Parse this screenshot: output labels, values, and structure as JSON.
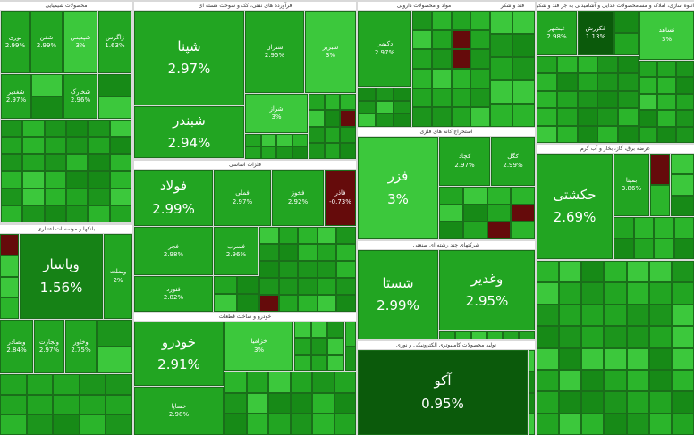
{
  "sectors": [
    {
      "title": "محصولات شیمیایی",
      "tiles": [
        {
          "label": "نوری",
          "change": "2.99%"
        },
        {
          "label": "شفن",
          "change": "2.99%"
        },
        {
          "label": "شپدیس",
          "change": "3%"
        },
        {
          "label": "زاگرس",
          "change": "1.63%"
        },
        {
          "label": "شغدیر",
          "change": "2.97%"
        },
        {
          "label": "شخارک",
          "change": "2.96%"
        }
      ]
    },
    {
      "title": "فرآورده های نفتی، کک و سوخت هسته ای",
      "tiles": [
        {
          "label": "شپنا",
          "change": "2.97%"
        },
        {
          "label": "شبندر",
          "change": "2.94%"
        },
        {
          "label": "شتران",
          "change": "2.95%"
        },
        {
          "label": "شبریز",
          "change": "3%"
        },
        {
          "label": "شراز",
          "change": "3%"
        }
      ]
    },
    {
      "title": "مواد و محصولات دارویی",
      "tiles": [
        {
          "label": "دکیمی",
          "change": "2.97%"
        }
      ]
    },
    {
      "title": "قند و شکر",
      "tiles": []
    },
    {
      "title": "محصولات غذایی و آشامیدنی به جز قند و شکر",
      "tiles": [
        {
          "label": "غبشهر",
          "change": "2.98%"
        },
        {
          "label": "غکورش",
          "change": "1.13%"
        }
      ]
    },
    {
      "title": "انبوه سازی، املاک و مستغلات",
      "tiles": [
        {
          "label": "ثشاهد",
          "change": "3%"
        }
      ]
    },
    {
      "title": "فلزات اساسی",
      "tiles": [
        {
          "label": "فولاد",
          "change": "2.99%"
        },
        {
          "label": "فملی",
          "change": "2.97%"
        },
        {
          "label": "فخوز",
          "change": "2.92%"
        },
        {
          "label": "فاذر",
          "change": "-0.73%"
        },
        {
          "label": "فجر",
          "change": "2.98%"
        },
        {
          "label": "فسرب",
          "change": "2.96%"
        },
        {
          "label": "فنورد",
          "change": "2.82%"
        }
      ]
    },
    {
      "title": "بانکها و موسسات اعتباری",
      "tiles": [
        {
          "label": "وپاسار",
          "change": "1.56%"
        },
        {
          "label": "وبملت",
          "change": "2%"
        },
        {
          "label": "وبصادر",
          "change": "2.84%"
        },
        {
          "label": "وتجارت",
          "change": "2.97%"
        },
        {
          "label": "وخاور",
          "change": "2.75%"
        }
      ]
    },
    {
      "title": "خودرو و ساخت قطعات",
      "tiles": [
        {
          "label": "خودرو",
          "change": "2.91%"
        },
        {
          "label": "خساپا",
          "change": "2.98%"
        },
        {
          "label": "خزامیا",
          "change": "3%"
        }
      ]
    },
    {
      "title": "استخراج کانه های فلزی",
      "tiles": [
        {
          "label": "فزر",
          "change": "3%"
        },
        {
          "label": "کچاد",
          "change": "2.97%"
        },
        {
          "label": "کگل",
          "change": "2.99%"
        }
      ]
    },
    {
      "title": "شرکتهای چند رشته ای صنعتی",
      "tiles": [
        {
          "label": "شستا",
          "change": "2.99%"
        },
        {
          "label": "وغدیر",
          "change": "2.95%"
        }
      ]
    },
    {
      "title": "تولید محصولات کامپیوتری الکترونیکی و نوری",
      "tiles": [
        {
          "label": "آکو",
          "change": "0.95%"
        }
      ]
    },
    {
      "title": "عرضه برق، گاز، بخار و آب گرم",
      "tiles": [
        {
          "label": "حکشتی",
          "change": "2.69%"
        },
        {
          "label": "بمپنا",
          "change": "3.86%"
        }
      ]
    }
  ]
}
